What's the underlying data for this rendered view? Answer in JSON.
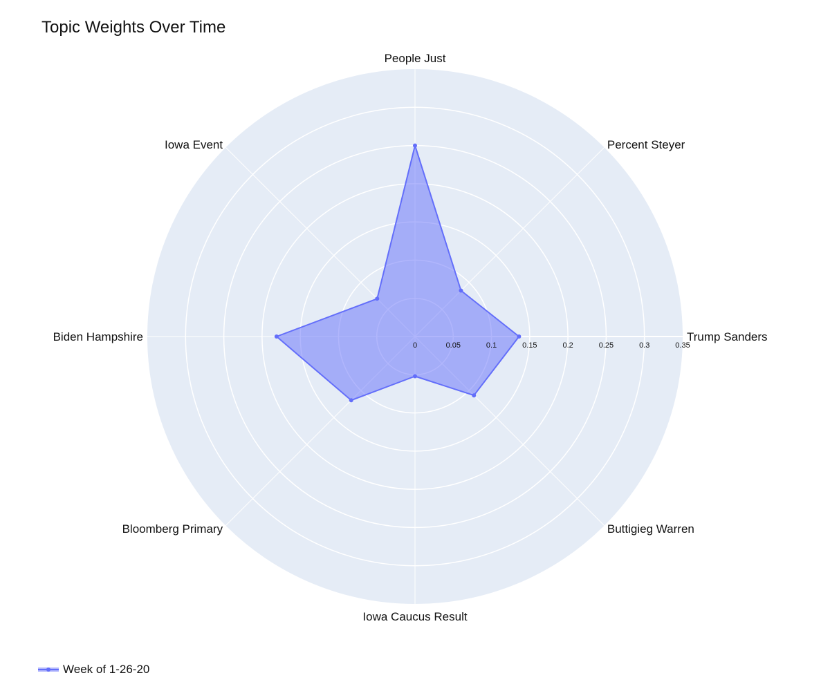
{
  "chart_data": {
    "type": "radar",
    "title": "Topic Weights Over Time",
    "categories": [
      "Trump Sanders",
      "Percent Steyer",
      "People Just",
      "Iowa Event",
      "Biden Hampshire",
      "Bloomberg Primary",
      "Iowa Caucus Result",
      "Buttigieg Warren"
    ],
    "series": [
      {
        "name": "Week of 1-26-20",
        "values": [
          0.136,
          0.085,
          0.25,
          0.07,
          0.181,
          0.118,
          0.052,
          0.109
        ]
      }
    ],
    "radial_range": [
      0,
      0.35
    ],
    "radial_ticks": [
      "0",
      "0.05",
      "0.1",
      "0.15",
      "0.2",
      "0.25",
      "0.3",
      "0.35"
    ],
    "grid": true,
    "legend_position": "bottom-left",
    "colors": {
      "polar_background": "#e5ecf6",
      "grid": "#ffffff",
      "series_line": "#636efa",
      "series_fill": "rgba(99,110,250,0.5)"
    }
  }
}
